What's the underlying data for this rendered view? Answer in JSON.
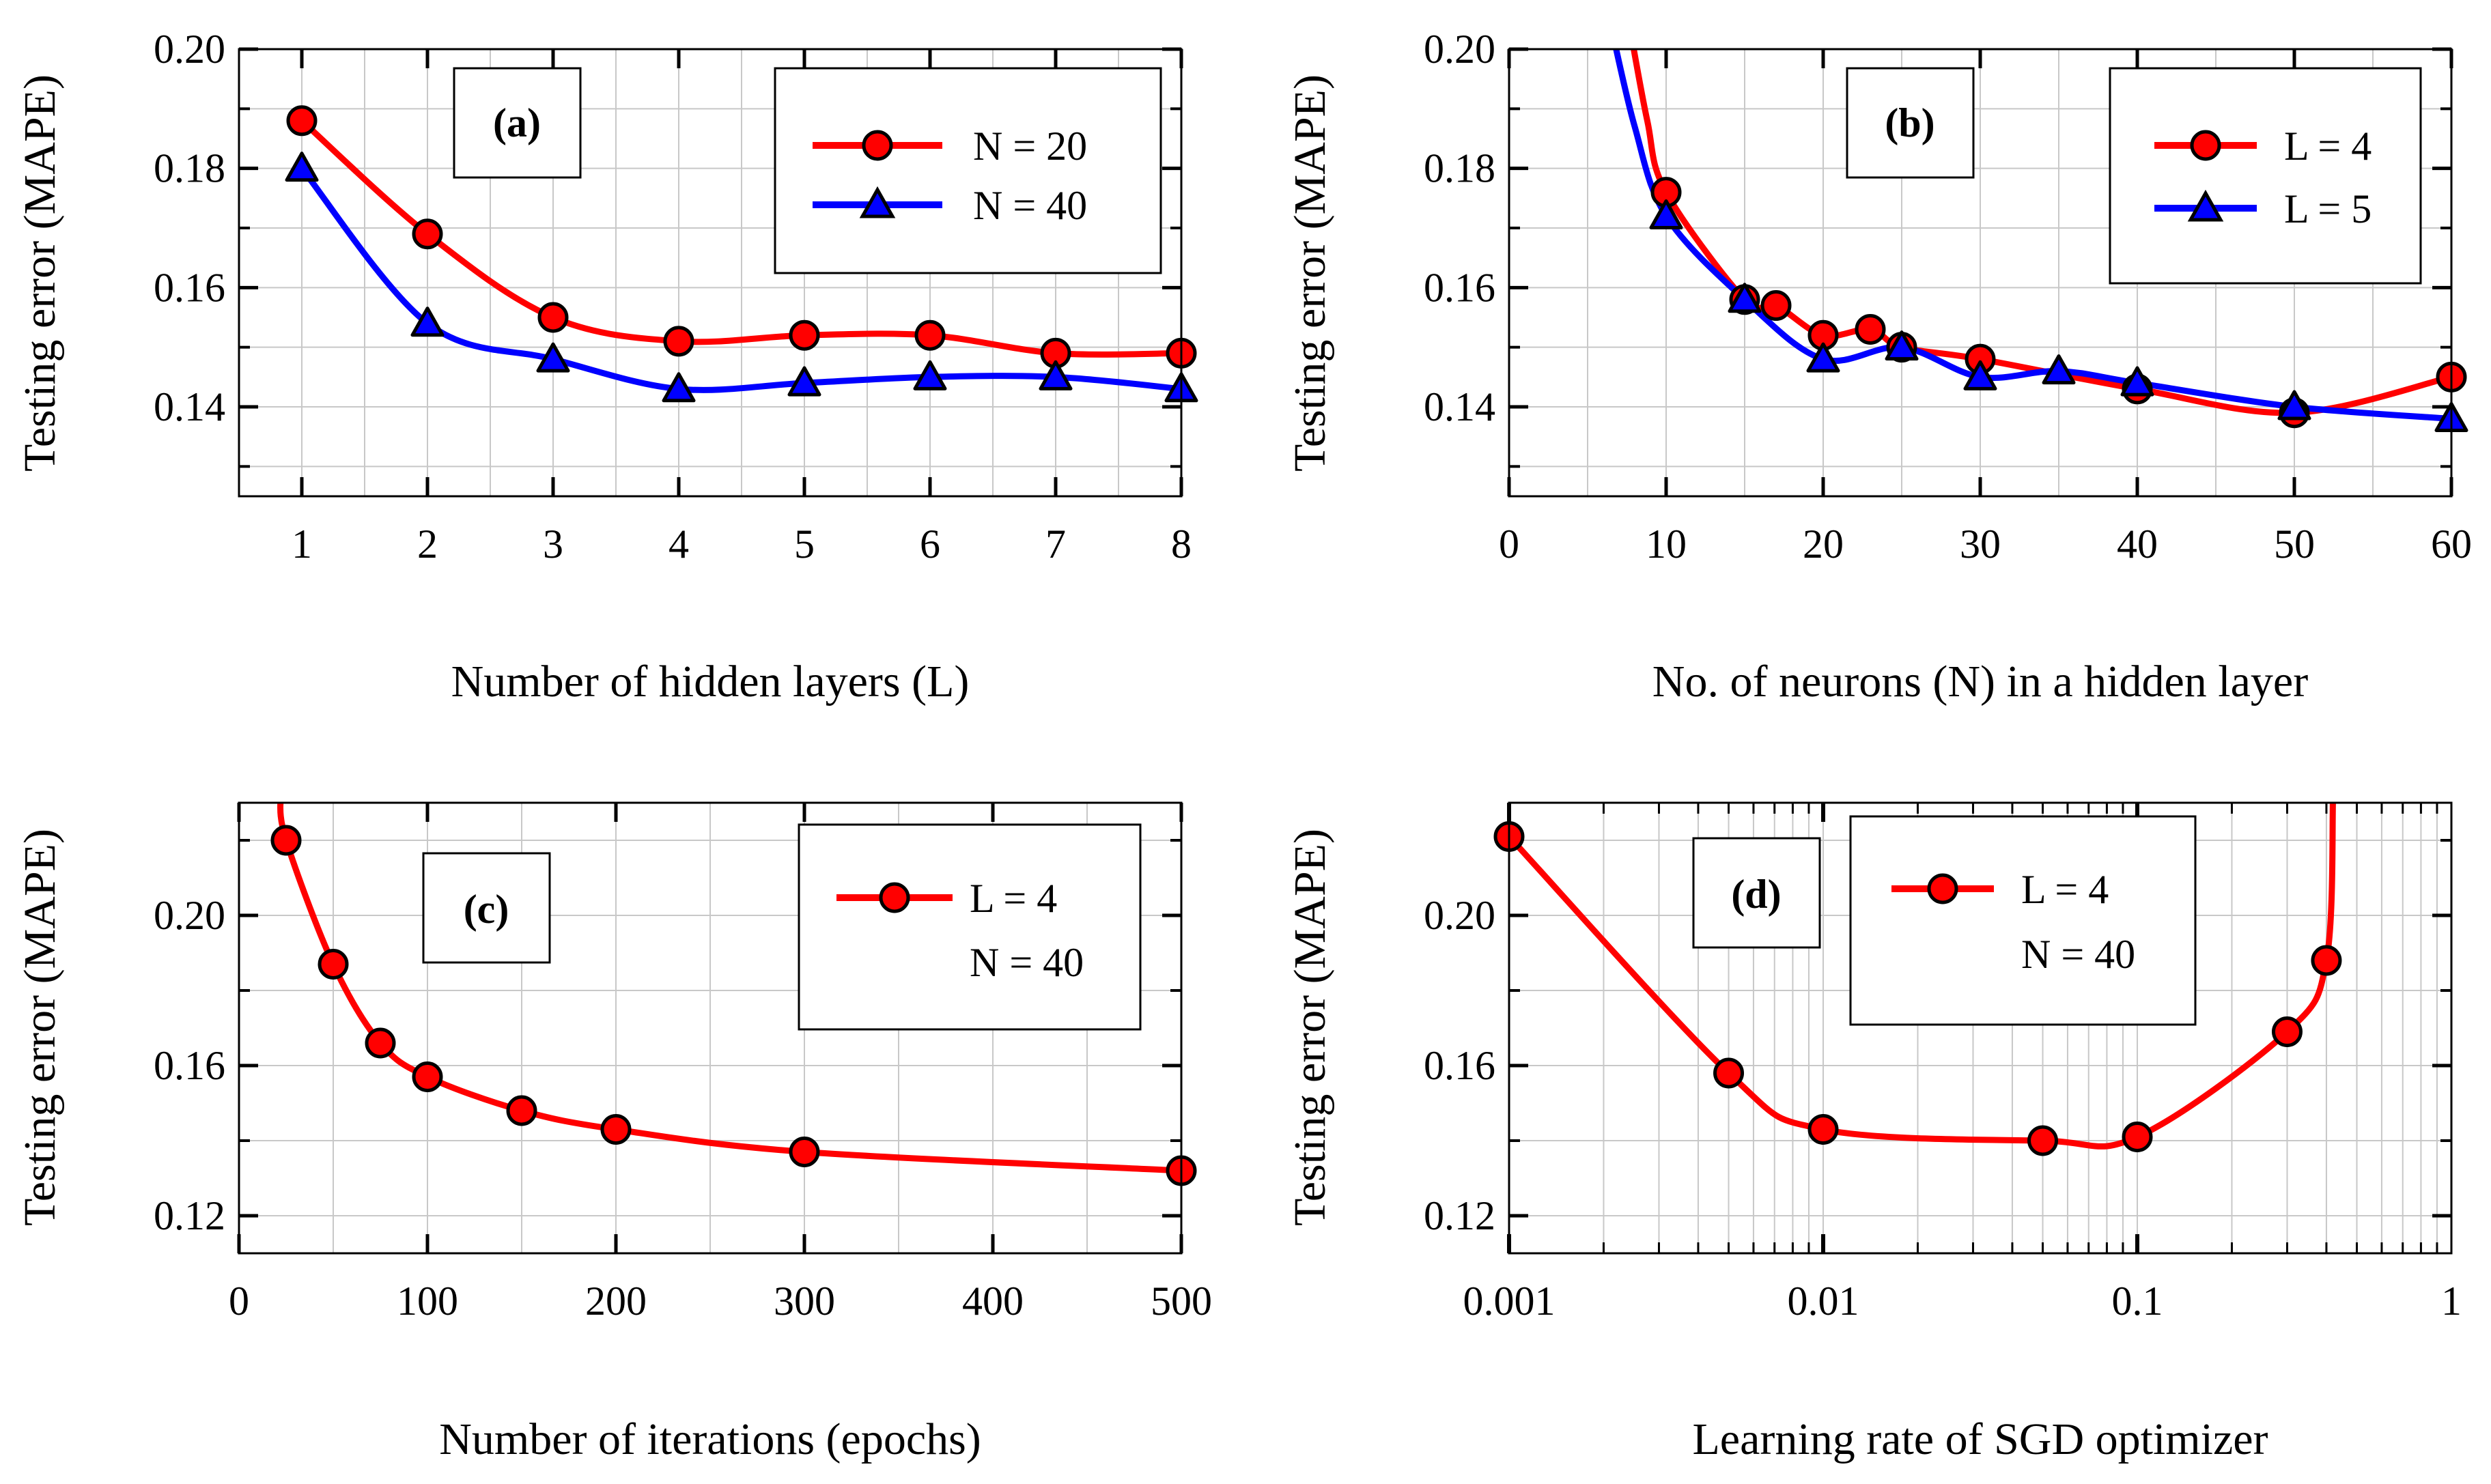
{
  "chart_data": [
    {
      "id": "a",
      "type": "line",
      "panel_label": "(a)",
      "xlabel": "Number of hidden layers (L)",
      "ylabel": "Testing error (MAPE)",
      "xscale": "linear",
      "xlim": [
        0.5,
        8
      ],
      "ylim": [
        0.125,
        0.2
      ],
      "xticks": [
        1,
        2,
        3,
        4,
        5,
        6,
        7,
        8
      ],
      "xtick_labels": [
        "1",
        "2",
        "3",
        "4",
        "5",
        "6",
        "7",
        "8"
      ],
      "yticks": [
        0.14,
        0.16,
        0.18,
        0.2
      ],
      "ytick_labels": [
        "0.14",
        "0.16",
        "0.18",
        "0.20"
      ],
      "grid": true,
      "legend_position": "top-right",
      "series": [
        {
          "name": "N = 20",
          "color": "#ff0000",
          "marker": "circle",
          "marker_color": "#ff0000",
          "x": [
            1,
            2,
            3,
            4,
            5,
            6,
            7,
            8
          ],
          "y": [
            0.188,
            0.169,
            0.155,
            0.151,
            0.152,
            0.152,
            0.149,
            0.149
          ]
        },
        {
          "name": "N = 40",
          "color": "#0000ff",
          "marker": "triangle",
          "marker_color": "#0000ff",
          "x": [
            1,
            2,
            3,
            4,
            5,
            6,
            7,
            8
          ],
          "y": [
            0.18,
            0.154,
            0.148,
            0.143,
            0.144,
            0.145,
            0.145,
            0.143
          ]
        }
      ]
    },
    {
      "id": "b",
      "type": "line",
      "panel_label": "(b)",
      "xlabel": "No. of neurons (N) in a hidden layer",
      "ylabel": "Testing error (MAPE)",
      "xscale": "linear",
      "xlim": [
        0,
        60
      ],
      "ylim": [
        0.125,
        0.2
      ],
      "xticks": [
        0,
        10,
        20,
        30,
        40,
        50,
        60
      ],
      "xtick_labels": [
        "0",
        "10",
        "20",
        "30",
        "40",
        "50",
        "60"
      ],
      "yticks": [
        0.14,
        0.16,
        0.18,
        0.2
      ],
      "ytick_labels": [
        "0.14",
        "0.16",
        "0.18",
        "0.20"
      ],
      "grid": true,
      "legend_position": "top-right",
      "series": [
        {
          "name": "L = 4",
          "color": "#ff0000",
          "marker": "circle",
          "marker_color": "#ff0000",
          "x": [
            10,
            15,
            17,
            20,
            23,
            25,
            30,
            40,
            50,
            60
          ],
          "y": [
            0.176,
            0.158,
            0.157,
            0.152,
            0.153,
            0.15,
            0.148,
            0.143,
            0.139,
            0.145
          ],
          "curve_lead_in": [
            {
              "x": 7.6,
              "y": 0.205
            },
            {
              "x": 8.8,
              "y": 0.188
            }
          ]
        },
        {
          "name": "L = 5",
          "color": "#0000ff",
          "marker": "triangle",
          "marker_color": "#0000ff",
          "x": [
            10,
            15,
            20,
            25,
            30,
            35,
            40,
            50,
            60
          ],
          "y": [
            0.172,
            0.158,
            0.148,
            0.15,
            0.145,
            0.146,
            0.144,
            0.14,
            0.138
          ],
          "curve_lead_in": [
            {
              "x": 6.4,
              "y": 0.205
            },
            {
              "x": 8.0,
              "y": 0.187
            }
          ]
        }
      ]
    },
    {
      "id": "c",
      "type": "line",
      "panel_label": "(c)",
      "xlabel": "Number of iterations (epochs)",
      "ylabel": "Testing error (MAPE)",
      "xscale": "linear",
      "xlim": [
        0,
        500
      ],
      "ylim": [
        0.11,
        0.23
      ],
      "xticks": [
        0,
        100,
        200,
        300,
        400,
        500
      ],
      "xtick_labels": [
        "0",
        "100",
        "200",
        "300",
        "400",
        "500"
      ],
      "yticks": [
        0.12,
        0.16,
        0.2
      ],
      "ytick_labels": [
        "0.12",
        "0.16",
        "0.20"
      ],
      "grid": true,
      "legend_position": "top-right",
      "series": [
        {
          "name": "L = 4",
          "name_line2": "N = 40",
          "color": "#ff0000",
          "marker": "circle",
          "marker_color": "#ff0000",
          "x": [
            25,
            50,
            75,
            100,
            150,
            200,
            300,
            500
          ],
          "y": [
            0.22,
            0.187,
            0.166,
            0.157,
            0.148,
            0.143,
            0.137,
            0.132
          ],
          "curve_lead_in": [
            {
              "x": 22,
              "y": 0.232
            }
          ]
        }
      ]
    },
    {
      "id": "d",
      "type": "line",
      "panel_label": "(d)",
      "xlabel": "Learning rate of SGD optimizer",
      "ylabel": "Testing error (MAPE)",
      "xscale": "log",
      "xlim": [
        0.001,
        1
      ],
      "ylim": [
        0.11,
        0.23
      ],
      "xticks": [
        0.001,
        0.01,
        0.1,
        1
      ],
      "xtick_labels": [
        "0.001",
        "0.01",
        "0.1",
        "1"
      ],
      "yticks": [
        0.12,
        0.16,
        0.2
      ],
      "ytick_labels": [
        "0.12",
        "0.16",
        "0.20"
      ],
      "grid": true,
      "legend_position": "top-left",
      "series": [
        {
          "name": "L = 4",
          "name_line2": "N = 40",
          "color": "#ff0000",
          "marker": "circle",
          "marker_color": "#ff0000",
          "x": [
            0.001,
            0.005,
            0.01,
            0.05,
            0.1,
            0.3,
            0.4
          ],
          "y": [
            0.221,
            0.158,
            0.143,
            0.14,
            0.141,
            0.169,
            0.188
          ],
          "curve_lead_out": [
            {
              "x": 0.42,
              "y": 0.232
            }
          ]
        }
      ]
    }
  ]
}
